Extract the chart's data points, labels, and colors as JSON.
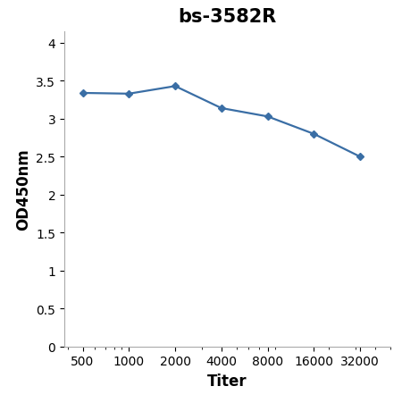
{
  "title": "bs-3582R",
  "xlabel": "Titer",
  "ylabel": "OD450nm",
  "x_values": [
    500,
    1000,
    2000,
    4000,
    8000,
    16000,
    32000
  ],
  "y_values": [
    3.34,
    3.33,
    3.43,
    3.14,
    3.03,
    2.8,
    2.5
  ],
  "x_ticks": [
    500,
    1000,
    2000,
    4000,
    8000,
    16000,
    32000
  ],
  "y_ticks": [
    0,
    0.5,
    1.0,
    1.5,
    2.0,
    2.5,
    3.0,
    3.5,
    4.0
  ],
  "y_tick_labels": [
    "0",
    "0.5",
    "1",
    "1.5",
    "2",
    "2.5",
    "3",
    "3.5",
    "4"
  ],
  "ylim": [
    0,
    4.15
  ],
  "line_color": "#3A6EA5",
  "marker": "D",
  "marker_size": 4,
  "line_width": 1.6,
  "title_fontsize": 15,
  "axis_label_fontsize": 12,
  "tick_fontsize": 10,
  "background_color": "#ffffff",
  "title_fontweight": "bold"
}
